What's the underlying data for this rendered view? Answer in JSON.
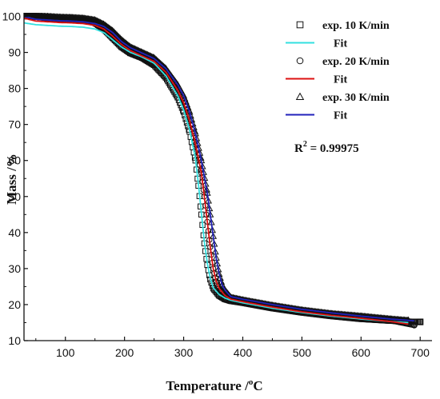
{
  "chart_data": {
    "type": "line",
    "xlabel_main": "Temperature /",
    "xlabel_sup": "o",
    "xlabel_unit": "C",
    "ylabel": "Mass /%",
    "xlim": [
      30,
      720
    ],
    "ylim": [
      10,
      101
    ],
    "xticks": [
      100,
      200,
      300,
      400,
      500,
      600,
      700
    ],
    "yticks": [
      10,
      20,
      30,
      40,
      50,
      60,
      70,
      80,
      90,
      100
    ],
    "grid": false,
    "legend_position": "top-right",
    "annotation": {
      "base": "R",
      "sup": "2",
      "rest": " = 0.99975"
    },
    "series": [
      {
        "name": "exp. 10 K/min",
        "kind": "markers",
        "marker": "square",
        "color": "#111111",
        "x": [
          30,
          50,
          70,
          90,
          110,
          130,
          150,
          165,
          180,
          195,
          210,
          230,
          250,
          270,
          290,
          300,
          310,
          320,
          325,
          330,
          335,
          340,
          345,
          350,
          360,
          370,
          380,
          400,
          450,
          500,
          550,
          600,
          650,
          680,
          700
        ],
        "y": [
          100.5,
          100,
          99.5,
          99.2,
          99.1,
          99,
          98.2,
          96.5,
          94,
          91.5,
          89.8,
          88.5,
          86.5,
          83,
          77.5,
          73.5,
          68,
          60,
          53,
          45,
          37,
          31,
          27,
          24.5,
          22.5,
          21.5,
          21,
          20.5,
          19,
          17.8,
          16.8,
          16,
          15.5,
          15.3,
          15.2
        ]
      },
      {
        "name": "Fit",
        "kind": "line",
        "color": "#33e0e0",
        "x": [
          30,
          50,
          70,
          90,
          110,
          130,
          150,
          165,
          180,
          195,
          210,
          230,
          250,
          270,
          290,
          300,
          310,
          320,
          325,
          330,
          335,
          340,
          345,
          350,
          360,
          370,
          380,
          400,
          450,
          500,
          550,
          600,
          650,
          680
        ],
        "y": [
          98.2,
          97.7,
          97.5,
          97.3,
          97.2,
          97,
          96.5,
          95.5,
          93.5,
          91.5,
          90,
          88.7,
          87,
          83.5,
          78,
          74,
          68.5,
          60.5,
          53.5,
          45.5,
          37.5,
          31.5,
          27.3,
          24.7,
          22.8,
          21.8,
          21.2,
          20.5,
          19,
          17.8,
          16.8,
          16,
          15.3,
          15
        ]
      },
      {
        "name": "exp. 20 K/min",
        "kind": "markers",
        "marker": "circle",
        "color": "#111111",
        "x": [
          30,
          50,
          70,
          90,
          110,
          130,
          150,
          165,
          180,
          195,
          210,
          230,
          250,
          270,
          290,
          300,
          310,
          320,
          330,
          335,
          340,
          345,
          350,
          355,
          360,
          370,
          380,
          400,
          450,
          500,
          550,
          600,
          650,
          690
        ],
        "y": [
          100,
          99.8,
          99.5,
          99.3,
          99.2,
          99,
          98.5,
          97,
          95,
          92.5,
          90.5,
          89,
          87.5,
          84.5,
          79.5,
          76,
          71,
          64.5,
          56.5,
          50,
          43,
          36,
          30,
          26.5,
          24.5,
          22.5,
          21.5,
          20.8,
          19.3,
          18,
          17,
          16.3,
          15.6,
          14.3
        ]
      },
      {
        "name": "Fit",
        "kind": "line",
        "color": "#dd1111",
        "x": [
          30,
          50,
          70,
          90,
          110,
          130,
          150,
          165,
          180,
          195,
          210,
          230,
          250,
          270,
          290,
          300,
          310,
          320,
          330,
          335,
          340,
          345,
          350,
          355,
          360,
          370,
          380,
          400,
          450,
          500,
          550,
          600,
          650,
          680
        ],
        "y": [
          99.5,
          98.7,
          98.5,
          98.3,
          98.2,
          98,
          97.5,
          96.5,
          94.5,
          92.2,
          90.5,
          89,
          87.5,
          84.5,
          79.5,
          76,
          71,
          64.5,
          56.5,
          50,
          43,
          36,
          30,
          26.5,
          24.5,
          22.5,
          21.5,
          20.8,
          19.3,
          18,
          17,
          16.2,
          15.3,
          14.6
        ]
      },
      {
        "name": "exp. 30 K/min",
        "kind": "markers",
        "marker": "triangle",
        "color": "#111111",
        "x": [
          30,
          50,
          70,
          90,
          110,
          130,
          150,
          165,
          180,
          195,
          210,
          230,
          250,
          270,
          290,
          300,
          310,
          320,
          330,
          340,
          345,
          350,
          355,
          360,
          365,
          370,
          380,
          400,
          450,
          500,
          550,
          600,
          650,
          680
        ],
        "y": [
          100.5,
          100.2,
          100,
          99.8,
          99.7,
          99.5,
          99,
          97.8,
          96,
          93.5,
          91.5,
          90,
          88.5,
          85.5,
          81,
          78,
          73.5,
          67.5,
          60,
          51,
          45,
          39,
          33,
          28.5,
          25.5,
          24,
          22,
          21.3,
          19.8,
          18.5,
          17.5,
          16.8,
          16,
          15.6
        ]
      },
      {
        "name": "Fit",
        "kind": "line",
        "color": "#2222bb",
        "x": [
          30,
          50,
          70,
          90,
          110,
          130,
          150,
          165,
          180,
          195,
          210,
          230,
          250,
          270,
          290,
          300,
          310,
          320,
          330,
          340,
          345,
          350,
          355,
          360,
          365,
          370,
          380,
          400,
          450,
          500,
          550,
          600,
          650,
          690
        ],
        "y": [
          100,
          99.2,
          99,
          98.8,
          98.7,
          98.5,
          98,
          97.2,
          95.5,
          93,
          91.3,
          89.8,
          88.3,
          85.5,
          81,
          78,
          73.5,
          67.5,
          60,
          51,
          45,
          39,
          33,
          28.5,
          25.5,
          24,
          22.2,
          21.5,
          20,
          18.7,
          17.7,
          16.8,
          16,
          15.5
        ]
      }
    ]
  }
}
